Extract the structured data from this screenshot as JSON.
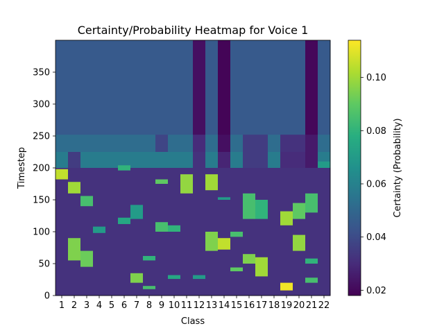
{
  "chart_data": {
    "type": "heatmap",
    "title": "Certainty/Probability Heatmap for Voice 1",
    "xlabel": "Class",
    "ylabel": "Timestep",
    "colorbar_label": "Certainty (Probability)",
    "colormap": "viridis",
    "x_categories": [
      "1",
      "2",
      "3",
      "4",
      "5",
      "6",
      "7",
      "8",
      "9",
      "10",
      "11",
      "12",
      "13",
      "14",
      "15",
      "16",
      "17",
      "18",
      "19",
      "20",
      "21",
      "22"
    ],
    "y_range": [
      0,
      400
    ],
    "y_ticks": [
      0,
      50,
      100,
      150,
      200,
      250,
      300,
      350
    ],
    "value_range": [
      0.018,
      0.114
    ],
    "colorbar_ticks": [
      0.02,
      0.04,
      0.06,
      0.08,
      0.1
    ],
    "colorbar_tick_labels": [
      "0.02",
      "0.04",
      "0.06",
      "0.08",
      "0.10"
    ],
    "bands": [
      {
        "y": [
          252,
          400
        ],
        "default": 0.045,
        "overrides": {
          "12": 0.022,
          "14": 0.019,
          "21": 0.02
        }
      },
      {
        "y": [
          225,
          252
        ],
        "default": 0.052,
        "overrides": {
          "12": 0.03,
          "14": 0.022,
          "16": 0.035,
          "17": 0.035,
          "19": 0.032,
          "20": 0.032,
          "21": 0.025,
          "9": 0.038
        }
      },
      {
        "y": [
          200,
          225
        ],
        "default": 0.058,
        "overrides": {
          "2": 0.035,
          "12": 0.032,
          "14": 0.028,
          "16": 0.035,
          "17": 0.035,
          "19": 0.03,
          "20": 0.03,
          "21": 0.025
        }
      },
      {
        "y": [
          0,
          200
        ],
        "default": 0.032,
        "overrides": {}
      }
    ],
    "hotspots": [
      {
        "class": 1,
        "y": [
          182,
          198
        ],
        "value": 0.105
      },
      {
        "class": 2,
        "y": [
          160,
          178
        ],
        "value": 0.1
      },
      {
        "class": 2,
        "y": [
          55,
          90
        ],
        "value": 0.095
      },
      {
        "class": 3,
        "y": [
          140,
          156
        ],
        "value": 0.085
      },
      {
        "class": 3,
        "y": [
          45,
          70
        ],
        "value": 0.092
      },
      {
        "class": 4,
        "y": [
          98,
          108
        ],
        "value": 0.07
      },
      {
        "class": 6,
        "y": [
          196,
          204
        ],
        "value": 0.08
      },
      {
        "class": 6,
        "y": [
          112,
          122
        ],
        "value": 0.075
      },
      {
        "class": 7,
        "y": [
          20,
          35
        ],
        "value": 0.095
      },
      {
        "class": 7,
        "y": [
          120,
          142
        ],
        "value": 0.07
      },
      {
        "class": 8,
        "y": [
          10,
          15
        ],
        "value": 0.085
      },
      {
        "class": 8,
        "y": [
          55,
          62
        ],
        "value": 0.08
      },
      {
        "class": 9,
        "y": [
          175,
          182
        ],
        "value": 0.09
      },
      {
        "class": 9,
        "y": [
          100,
          115
        ],
        "value": 0.085
      },
      {
        "class": 10,
        "y": [
          26,
          32
        ],
        "value": 0.075
      },
      {
        "class": 10,
        "y": [
          100,
          110
        ],
        "value": 0.08
      },
      {
        "class": 11,
        "y": [
          160,
          190
        ],
        "value": 0.098
      },
      {
        "class": 12,
        "y": [
          26,
          32
        ],
        "value": 0.07
      },
      {
        "class": 13,
        "y": [
          165,
          190
        ],
        "value": 0.1
      },
      {
        "class": 13,
        "y": [
          70,
          100
        ],
        "value": 0.095
      },
      {
        "class": 14,
        "y": [
          72,
          90
        ],
        "value": 0.105
      },
      {
        "class": 14,
        "y": [
          150,
          154
        ],
        "value": 0.07
      },
      {
        "class": 15,
        "y": [
          38,
          44
        ],
        "value": 0.09
      },
      {
        "class": 15,
        "y": [
          92,
          100
        ],
        "value": 0.085
      },
      {
        "class": 16,
        "y": [
          50,
          65
        ],
        "value": 0.095
      },
      {
        "class": 16,
        "y": [
          120,
          160
        ],
        "value": 0.085
      },
      {
        "class": 17,
        "y": [
          30,
          60
        ],
        "value": 0.1
      },
      {
        "class": 17,
        "y": [
          120,
          150
        ],
        "value": 0.08
      },
      {
        "class": 19,
        "y": [
          8,
          20
        ],
        "value": 0.112
      },
      {
        "class": 19,
        "y": [
          110,
          132
        ],
        "value": 0.1
      },
      {
        "class": 20,
        "y": [
          70,
          95
        ],
        "value": 0.098
      },
      {
        "class": 20,
        "y": [
          120,
          145
        ],
        "value": 0.09
      },
      {
        "class": 21,
        "y": [
          130,
          160
        ],
        "value": 0.085
      },
      {
        "class": 21,
        "y": [
          50,
          58
        ],
        "value": 0.08
      },
      {
        "class": 21,
        "y": [
          20,
          28
        ],
        "value": 0.085
      },
      {
        "class": 22,
        "y": [
          200,
          210
        ],
        "value": 0.07
      }
    ]
  }
}
